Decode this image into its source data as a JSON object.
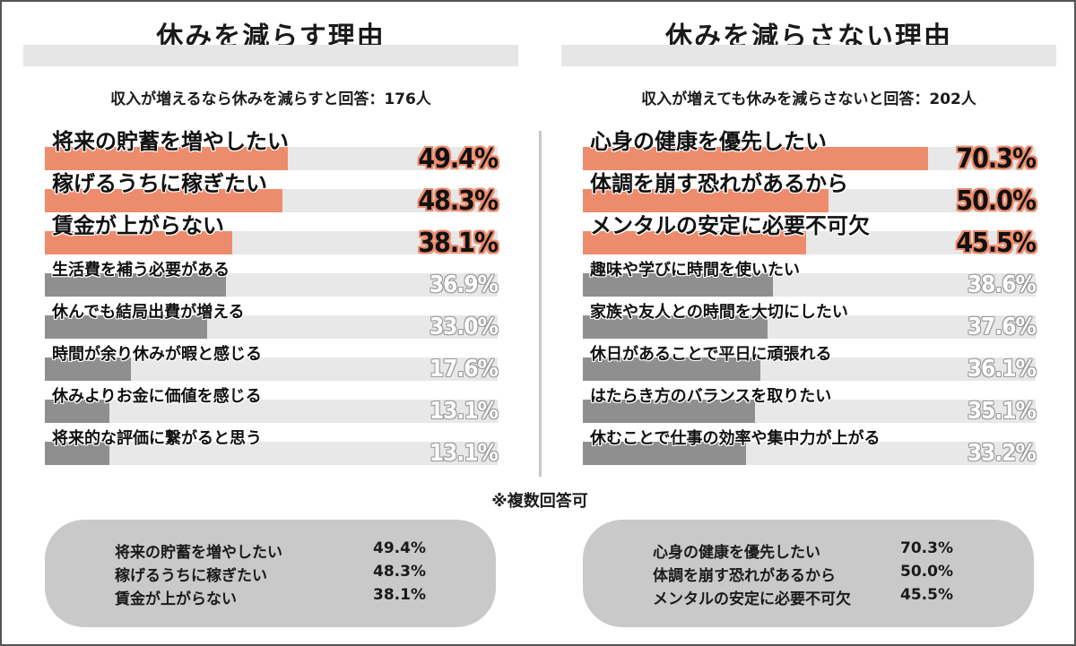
{
  "colors": {
    "accent": "#ed8c6c",
    "minor_bar": "#8f8f8f",
    "track": "#e8e8e8",
    "summary_bg": "#c9c9c9"
  },
  "chart_data": [
    {
      "type": "bar",
      "orientation": "horizontal",
      "title": "休みを減らす理由",
      "subtitle": "収入が増えるなら休みを減らすと回答：176人",
      "xlim": [
        0,
        100
      ],
      "categories": [
        "将来の貯蓄を増やしたい",
        "稼げるうちに稼ぎたい",
        "賃金が上がらない",
        "生活費を補う必要がある",
        "休んでも結局出費が増える",
        "時間が余り休みが暇と感じる",
        "休みよりお金に価値を感じる",
        "将来的な評価に繋がると思う"
      ],
      "values": [
        49.4,
        48.3,
        38.1,
        36.9,
        33.0,
        17.6,
        13.1,
        13.1
      ],
      "labels": [
        "49.4%",
        "48.3%",
        "38.1%",
        "36.9%",
        "33.0%",
        "17.6%",
        "13.1%",
        "13.1%"
      ],
      "highlight_top": 3
    },
    {
      "type": "bar",
      "orientation": "horizontal",
      "title": "休みを減らさない理由",
      "subtitle": "収入が増えても休みを減らさないと回答：202人",
      "xlim": [
        0,
        100
      ],
      "categories": [
        "心身の健康を優先したい",
        "体調を崩す恐れがあるから",
        "メンタルの安定に必要不可欠",
        "趣味や学びに時間を使いたい",
        "家族や友人との時間を大切にしたい",
        "休日があることで平日に頑張れる",
        "はたらき方のバランスを取りたい",
        "休むことで仕事の効率や集中力が上がる"
      ],
      "values": [
        70.3,
        50.0,
        45.5,
        38.6,
        37.6,
        36.1,
        35.1,
        33.2
      ],
      "labels": [
        "70.3%",
        "50.0%",
        "45.5%",
        "38.6%",
        "37.6%",
        "36.1%",
        "35.1%",
        "33.2%"
      ],
      "highlight_top": 3
    }
  ],
  "note": "※複数回答可",
  "summary": {
    "left": [
      {
        "name": "将来の貯蓄を増やしたい",
        "value": "49.4%"
      },
      {
        "name": "稼げるうちに稼ぎたい",
        "value": "48.3%"
      },
      {
        "name": "賃金が上がらない",
        "value": "38.1%"
      }
    ],
    "right": [
      {
        "name": "心身の健康を優先したい",
        "value": "70.3%"
      },
      {
        "name": "体調を崩す恐れがあるから",
        "value": "50.0%"
      },
      {
        "name": "メンタルの安定に必要不可欠",
        "value": "45.5%"
      }
    ]
  }
}
